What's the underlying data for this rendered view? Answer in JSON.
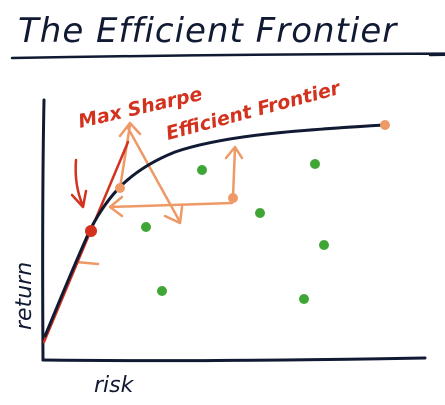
{
  "title": "The Efficient Frontier",
  "labels": {
    "max_sharpe": "Max Sharpe",
    "efficient_frontier": "Efficient Frontier",
    "x_axis": "risk",
    "y_axis": "return"
  },
  "colors": {
    "ink": "#111a33",
    "red": "#d2321e",
    "orange": "#ee9966",
    "green": "#3fa535",
    "background": "#ffffff"
  },
  "points": {
    "green_dots": 6,
    "orange_portfolios": 3,
    "max_sharpe_marker": 1
  }
}
